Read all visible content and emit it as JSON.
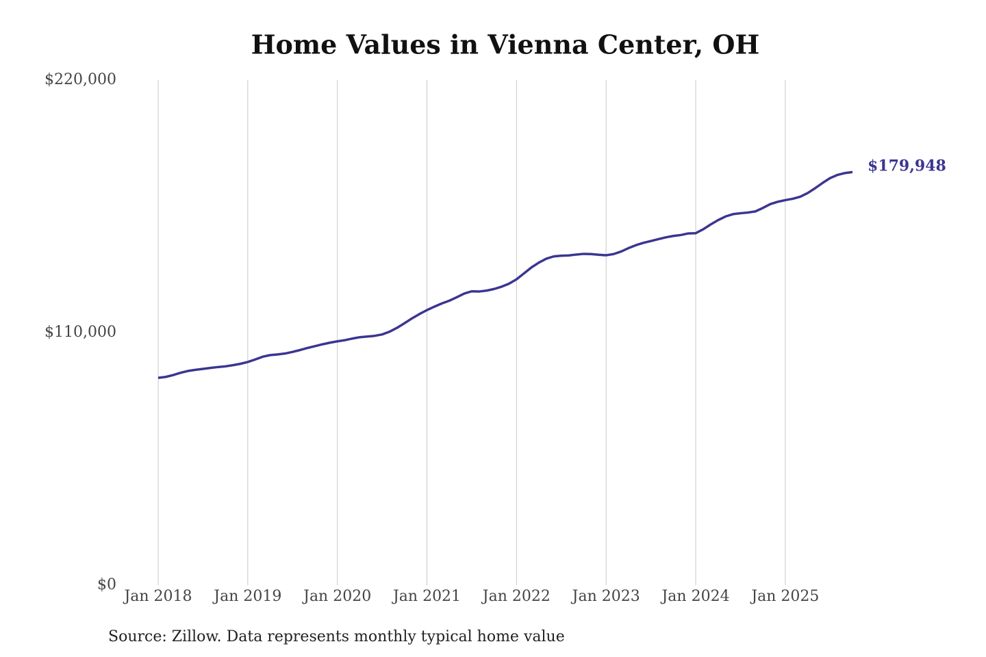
{
  "chart_data": {
    "type": "line",
    "title": "Home Values in Vienna Center, OH",
    "source": "Source: Zillow. Data represents monthly typical home value",
    "x": [
      "2018-01",
      "2018-02",
      "2018-03",
      "2018-04",
      "2018-05",
      "2018-06",
      "2018-07",
      "2018-08",
      "2018-09",
      "2018-10",
      "2018-11",
      "2018-12",
      "2019-01",
      "2019-02",
      "2019-03",
      "2019-04",
      "2019-05",
      "2019-06",
      "2019-07",
      "2019-08",
      "2019-09",
      "2019-10",
      "2019-11",
      "2019-12",
      "2020-01",
      "2020-02",
      "2020-03",
      "2020-04",
      "2020-05",
      "2020-06",
      "2020-07",
      "2020-08",
      "2020-09",
      "2020-10",
      "2020-11",
      "2020-12",
      "2021-01",
      "2021-02",
      "2021-03",
      "2021-04",
      "2021-05",
      "2021-06",
      "2021-07",
      "2021-08",
      "2021-09",
      "2021-10",
      "2021-11",
      "2021-12",
      "2022-01",
      "2022-02",
      "2022-03",
      "2022-04",
      "2022-05",
      "2022-06",
      "2022-07",
      "2022-08",
      "2022-09",
      "2022-10",
      "2022-11",
      "2022-12",
      "2023-01",
      "2023-02",
      "2023-03",
      "2023-04",
      "2023-05",
      "2023-06",
      "2023-07",
      "2023-08",
      "2023-09",
      "2023-10",
      "2023-11",
      "2023-12",
      "2024-01",
      "2024-02",
      "2024-03",
      "2024-04",
      "2024-05",
      "2024-06",
      "2024-07",
      "2024-08",
      "2024-09",
      "2024-10",
      "2024-11",
      "2024-12",
      "2025-01",
      "2025-02",
      "2025-03",
      "2025-04",
      "2025-05",
      "2025-06",
      "2025-07",
      "2025-08",
      "2025-09",
      "2025-10"
    ],
    "series": [
      {
        "name": "Home value",
        "color": "#3b3592",
        "values": [
          90300,
          90700,
          91500,
          92500,
          93300,
          93800,
          94200,
          94600,
          95000,
          95300,
          95800,
          96400,
          97200,
          98300,
          99500,
          100200,
          100500,
          100900,
          101600,
          102400,
          103300,
          104100,
          104900,
          105600,
          106200,
          106700,
          107400,
          108000,
          108300,
          108600,
          109200,
          110400,
          112100,
          114100,
          116200,
          118100,
          119800,
          121300,
          122700,
          123900,
          125400,
          127000,
          128000,
          127900,
          128300,
          129000,
          130000,
          131300,
          133200,
          135800,
          138400,
          140500,
          142200,
          143200,
          143500,
          143600,
          144000,
          144300,
          144200,
          143900,
          143700,
          144200,
          145300,
          146800,
          148100,
          149100,
          149900,
          150700,
          151500,
          152100,
          152500,
          153200,
          153300,
          155000,
          157100,
          159000,
          160600,
          161600,
          162000,
          162300,
          162800,
          164300,
          166000,
          167000,
          167700,
          168300,
          169200,
          170800,
          172900,
          175200,
          177300,
          178700,
          179500,
          179948
        ],
        "value_labels": [
          null,
          null,
          null,
          null,
          null,
          null,
          null,
          null,
          null,
          null,
          null,
          null,
          null,
          null,
          null,
          null,
          null,
          null,
          null,
          null,
          null,
          null,
          null,
          null,
          null,
          null,
          null,
          null,
          null,
          null,
          null,
          null,
          null,
          null,
          null,
          null,
          null,
          null,
          null,
          null,
          null,
          null,
          null,
          null,
          null,
          null,
          null,
          null,
          null,
          null,
          null,
          null,
          null,
          null,
          null,
          null,
          null,
          null,
          null,
          null,
          null,
          null,
          null,
          null,
          null,
          null,
          null,
          null,
          null,
          null,
          null,
          null,
          null,
          null,
          null,
          null,
          null,
          null,
          null,
          null,
          null,
          null,
          null,
          null,
          null,
          null,
          null,
          null,
          null,
          null,
          null,
          null,
          null,
          "$179,948"
        ]
      }
    ],
    "xlim": [
      "2018-01",
      "2025-10"
    ],
    "xticks": [
      {
        "value": "2018-01",
        "label": "Jan 2018"
      },
      {
        "value": "2019-01",
        "label": "Jan 2019"
      },
      {
        "value": "2020-01",
        "label": "Jan 2020"
      },
      {
        "value": "2021-01",
        "label": "Jan 2021"
      },
      {
        "value": "2022-01",
        "label": "Jan 2022"
      },
      {
        "value": "2023-01",
        "label": "Jan 2023"
      },
      {
        "value": "2024-01",
        "label": "Jan 2024"
      },
      {
        "value": "2025-01",
        "label": "Jan 2025"
      }
    ],
    "ylim": [
      0,
      220000
    ],
    "yticks": [
      {
        "value": 0,
        "label": "$0"
      },
      {
        "value": 110000,
        "label": "$110,000"
      },
      {
        "value": 220000,
        "label": "$220,000"
      }
    ],
    "grid": "x"
  }
}
